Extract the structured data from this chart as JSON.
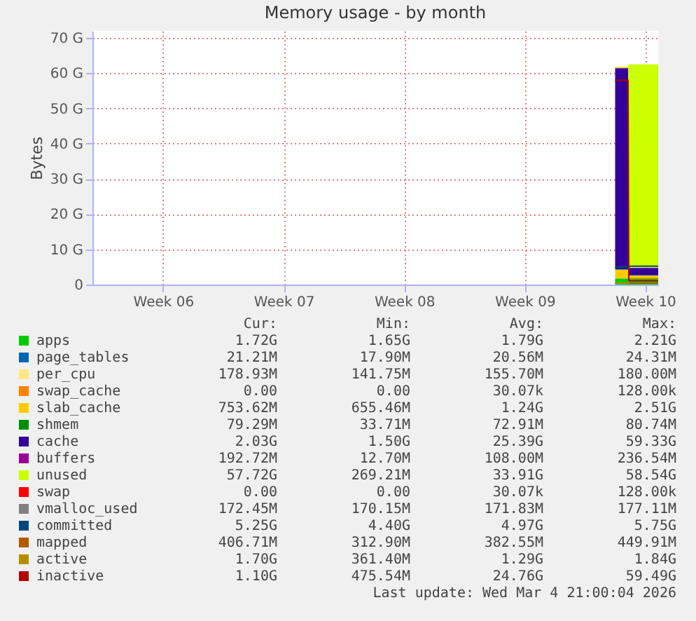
{
  "chart_data": {
    "type": "area",
    "title": "Memory usage - by month",
    "ylabel": "Bytes",
    "stacked": true,
    "grid": true,
    "legend": "bottom",
    "xlim": [
      "2026-01-28T21:30",
      "2026-03-02T18:00"
    ],
    "xticks": [
      {
        "value": "2026-02-02T00:00",
        "label": "Week 06"
      },
      {
        "value": "2026-02-09T00:00",
        "label": "Week 07"
      },
      {
        "value": "2026-02-16T00:00",
        "label": "Week 08"
      },
      {
        "value": "2026-02-23T00:00",
        "label": "Week 09"
      },
      {
        "value": "2026-03-02T00:00",
        "label": "Week 10"
      }
    ],
    "ylim": [
      0,
      72
    ],
    "yticks": [
      {
        "value": 0,
        "label": "0"
      },
      {
        "value": 10,
        "label": "10 G"
      },
      {
        "value": 20,
        "label": "20 G"
      },
      {
        "value": 30,
        "label": "30 G"
      },
      {
        "value": 40,
        "label": "40 G"
      },
      {
        "value": 50,
        "label": "50 G"
      },
      {
        "value": 60,
        "label": "60 G"
      },
      {
        "value": 70,
        "label": "70 G"
      }
    ],
    "x": [
      "2026-02-28T06:00",
      "2026-03-01T00:00",
      "2026-03-01T01:00",
      "2026-03-02T18:00"
    ],
    "series": [
      {
        "name": "apps",
        "color": "#00cc00",
        "values": [
          1.7,
          1.7,
          1.7,
          1.7
        ]
      },
      {
        "name": "page_tables",
        "color": "#0066b3",
        "values": [
          0.02,
          0.02,
          0.02,
          0.02
        ]
      },
      {
        "name": "per_cpu",
        "color": "#ffe680",
        "values": [
          null,
          null,
          null,
          null
        ]
      },
      {
        "name": "swap_cache",
        "color": "#ff8000",
        "values": [
          null,
          null,
          null,
          null
        ]
      },
      {
        "name": "slab_cache",
        "color": "#ffcc00",
        "values": [
          2.5,
          2.5,
          0.8,
          0.8
        ]
      },
      {
        "name": "shmem",
        "color": "#008f00",
        "values": [
          0.1,
          0.1,
          0.1,
          0.1
        ]
      },
      {
        "name": "cache",
        "color": "#330099",
        "values": [
          57,
          57,
          2,
          2
        ]
      },
      {
        "name": "buffers",
        "color": "#990099",
        "values": [
          0.2,
          0.2,
          0.2,
          0.2
        ]
      },
      {
        "name": "unused",
        "color": "#ccff00",
        "values": [
          0.3,
          0.3,
          57.7,
          57.7
        ]
      },
      {
        "name": "swap",
        "color": "#ff0000",
        "values": [
          null,
          null,
          null,
          null
        ]
      },
      {
        "name": "vmalloc_used",
        "type": "line",
        "color": "#808080",
        "values": [
          null,
          null,
          null,
          null
        ]
      },
      {
        "name": "committed",
        "type": "line",
        "color": "#00487d",
        "values": [
          5,
          5,
          5.2,
          5.2
        ]
      },
      {
        "name": "mapped",
        "type": "line",
        "color": "#b35a00",
        "values": [
          0.4,
          0.4,
          0.4,
          0.4
        ]
      },
      {
        "name": "active",
        "type": "line",
        "color": "#b38f00",
        "values": [
          0.4,
          0.4,
          1.7,
          1.7
        ]
      },
      {
        "name": "inactive",
        "type": "line",
        "color": "#b30000",
        "values": [
          58,
          58,
          1.1,
          1.1
        ]
      }
    ],
    "annotations": [
      "Cur:",
      "Min:",
      "Avg:",
      "Max:",
      "1.72G",
      "1.65G",
      "1.79G",
      "2.21G",
      "21.21M",
      "17.90M",
      "20.56M",
      "24.31M",
      "178.93M",
      "141.75M",
      "155.70M",
      "180.00M",
      "0.00",
      "0.00",
      "30.07k",
      "128.00k",
      "753.62M",
      "655.46M",
      "1.24G",
      "2.51G",
      "79.29M",
      "33.71M",
      "72.91M",
      "80.74M",
      "2.03G",
      "1.50G",
      "25.39G",
      "59.33G",
      "192.72M",
      "12.70M",
      "108.00M",
      "236.54M",
      "57.72G",
      "269.21M",
      "33.91G",
      "58.54G",
      "0.00",
      "0.00",
      "30.07k",
      "128.00k",
      "172.45M",
      "170.15M",
      "171.83M",
      "177.11M",
      "5.25G",
      "4.40G",
      "4.97G",
      "5.75G",
      "406.71M",
      "312.90M",
      "382.55M",
      "449.91M",
      "1.70G",
      "361.40M",
      "1.29G",
      "1.84G",
      "1.10G",
      "475.54M",
      "24.76G",
      "59.49G",
      "Last update: Wed Mar  4 21:00:04 2026"
    ]
  }
}
